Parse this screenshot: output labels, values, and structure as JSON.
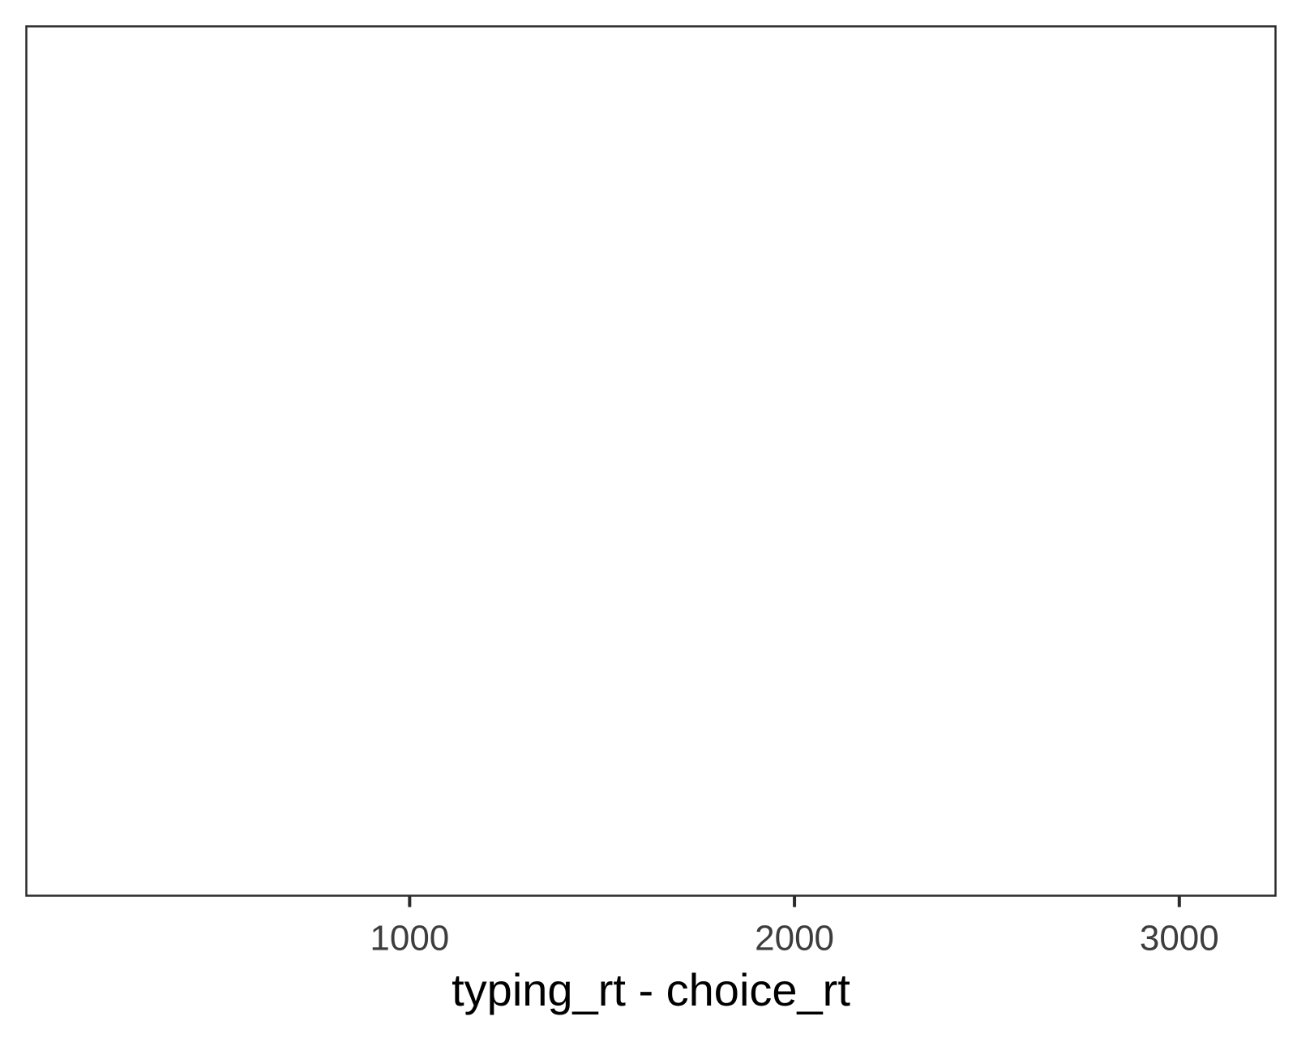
{
  "chart_data": {
    "type": "histogram",
    "title": "",
    "xlabel": "typing_rt - choice_rt",
    "ylabel": "",
    "xlim": [
      4,
      3250
    ],
    "x_ticks": [
      1000,
      2000,
      3000
    ],
    "x_tick_labels": [
      "1000",
      "2000",
      "3000"
    ],
    "show_y_axis": false,
    "grid": false,
    "series": [],
    "colors": {
      "panel_border": "#2b2b2b",
      "tick_text": "#3d3d3d",
      "axis_title": "#000000",
      "background": "#ffffff"
    }
  }
}
